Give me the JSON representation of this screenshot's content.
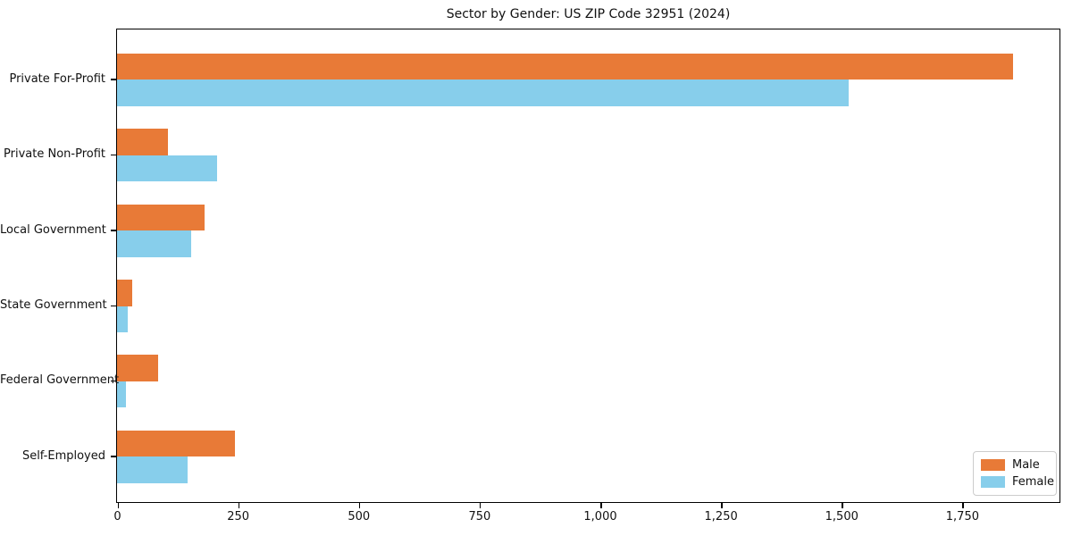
{
  "title": "Sector by Gender: US ZIP Code 32951 (2024)",
  "chart_data": {
    "type": "bar",
    "orientation": "horizontal",
    "title": "Sector by Gender: US ZIP Code 32951 (2024)",
    "categories": [
      "Private For-Profit",
      "Private Non-Profit",
      "Local Government",
      "State Government",
      "Federal Government",
      "Self-Employed"
    ],
    "series": [
      {
        "name": "Male",
        "color": "#e87a37",
        "values": [
          1855,
          105,
          182,
          31,
          86,
          244
        ]
      },
      {
        "name": "Female",
        "color": "#87ceeb",
        "values": [
          1515,
          207,
          154,
          22,
          18,
          147
        ]
      }
    ],
    "xlabel": "",
    "ylabel": "",
    "xlim": [
      0,
      1950
    ],
    "xticks": [
      0,
      250,
      500,
      750,
      1000,
      1250,
      1500,
      1750
    ],
    "xtick_labels": [
      "0",
      "250",
      "500",
      "750",
      "1,000",
      "1,250",
      "1,500",
      "1,750"
    ],
    "grid": false,
    "legend_position": "lower right"
  },
  "legend": {
    "items": [
      {
        "label": "Male",
        "color": "#e87a37"
      },
      {
        "label": "Female",
        "color": "#87ceeb"
      }
    ]
  }
}
